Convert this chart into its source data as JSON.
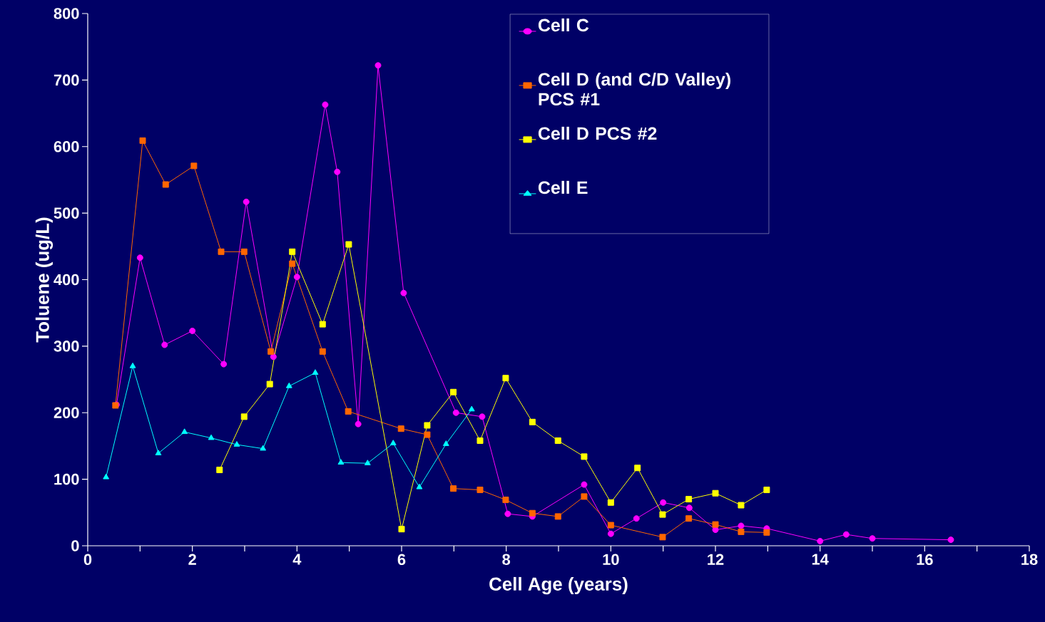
{
  "chart_data": {
    "type": "line",
    "xlabel": "Cell Age (years)",
    "ylabel": "Toluene (ug/L)",
    "xlim": [
      0,
      18
    ],
    "ylim": [
      0,
      800
    ],
    "xticks": [
      0,
      {
        "value": 1,
        "label": null
      },
      2,
      {
        "value": 3,
        "label": null
      },
      4,
      {
        "value": 5,
        "label": null
      },
      6,
      {
        "value": 7,
        "label": null
      },
      8,
      {
        "value": 9,
        "label": null
      },
      10,
      {
        "value": 11,
        "label": null
      },
      12,
      {
        "value": 13,
        "label": null
      },
      14,
      {
        "value": 15,
        "label": null
      },
      16,
      {
        "value": 17,
        "label": null
      },
      18
    ],
    "yticks": [
      0,
      100,
      200,
      300,
      400,
      500,
      600,
      700,
      800
    ],
    "grid": false,
    "legend": "top right",
    "line_style": "solid",
    "series": [
      {
        "name": "Cell C",
        "color": "#ff00ff",
        "marker": "circle",
        "x": [
          0.55,
          1.0,
          1.47,
          2.0,
          2.6,
          3.03,
          3.55,
          4.0,
          4.54,
          4.77,
          5.17,
          5.55,
          6.04,
          7.04,
          7.54,
          8.03,
          8.5,
          9.49,
          10.0,
          10.49,
          11.0,
          11.5,
          12.0,
          12.49,
          12.98,
          14.0,
          14.5,
          15.0,
          16.5
        ],
        "values": [
          212,
          433,
          302,
          323,
          273,
          517,
          284,
          404,
          663,
          562,
          183,
          722,
          380,
          200,
          194,
          48,
          44,
          92,
          18,
          41,
          65,
          57,
          24,
          30,
          26,
          7,
          17,
          11,
          9
        ]
      },
      {
        "name": "Cell D (and C/D Valley) PCS #1",
        "color": "#ff6600",
        "marker": "square",
        "x": [
          0.53,
          1.05,
          1.49,
          2.03,
          2.55,
          2.99,
          3.5,
          3.91,
          4.49,
          4.98,
          5.99,
          6.49,
          6.99,
          7.5,
          7.99,
          8.5,
          8.99,
          9.49,
          10.0,
          10.99,
          11.49,
          12.0,
          12.49,
          12.98
        ],
        "values": [
          211,
          609,
          543,
          571,
          442,
          442,
          292,
          424,
          292,
          202,
          176,
          167,
          86,
          84,
          69,
          49,
          44,
          74,
          31,
          13,
          41,
          32,
          21,
          20
        ]
      },
      {
        "name": "Cell D PCS #2",
        "color": "#ffff00",
        "marker": "square",
        "x": [
          2.52,
          2.99,
          3.48,
          3.91,
          4.49,
          4.99,
          6.0,
          6.49,
          6.99,
          7.5,
          7.99,
          8.5,
          8.99,
          9.49,
          10.0,
          10.51,
          10.99,
          11.49,
          12.0,
          12.49,
          12.98
        ],
        "values": [
          114,
          194,
          243,
          442,
          333,
          453,
          25,
          181,
          231,
          158,
          252,
          186,
          158,
          134,
          65,
          117,
          47,
          70,
          79,
          61,
          84
        ]
      },
      {
        "name": "Cell E",
        "color": "#00ffff",
        "marker": "triangle",
        "x": [
          0.35,
          0.86,
          1.35,
          1.85,
          2.36,
          2.85,
          3.35,
          3.85,
          4.35,
          4.84,
          5.35,
          5.84,
          6.34,
          6.85,
          7.34
        ],
        "values": [
          103,
          270,
          139,
          171,
          162,
          152,
          146,
          240,
          260,
          125,
          124,
          154,
          88,
          153,
          205
        ]
      }
    ]
  }
}
